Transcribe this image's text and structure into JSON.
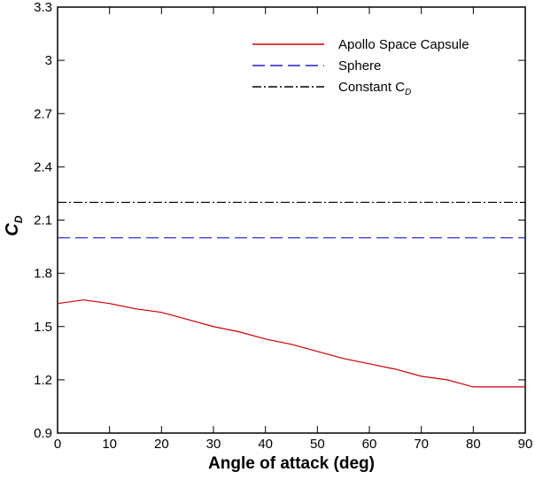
{
  "chart_data": {
    "type": "line",
    "xlabel": "Angle of attack (deg)",
    "ylabel": "C",
    "ylabel_sub": "D",
    "x": [
      0,
      5,
      10,
      15,
      20,
      25,
      30,
      35,
      40,
      45,
      50,
      55,
      60,
      65,
      70,
      75,
      80,
      85,
      90
    ],
    "series": [
      {
        "name": "Apollo Space Capsule",
        "color": "#cc0000",
        "dash": "solid",
        "values": [
          1.63,
          1.65,
          1.63,
          1.6,
          1.58,
          1.54,
          1.5,
          1.47,
          1.43,
          1.4,
          1.36,
          1.32,
          1.29,
          1.26,
          1.22,
          1.2,
          1.16,
          1.16,
          1.16
        ]
      },
      {
        "name": "Sphere",
        "color": "#2222cc",
        "dash": "dashed",
        "values": [
          2.0,
          2.0,
          2.0,
          2.0,
          2.0,
          2.0,
          2.0,
          2.0,
          2.0,
          2.0,
          2.0,
          2.0,
          2.0,
          2.0,
          2.0,
          2.0,
          2.0,
          2.0,
          2.0
        ]
      },
      {
        "name": "Constant C",
        "name_sub": "D",
        "color": "#000000",
        "dash": "dashdot",
        "values": [
          2.2,
          2.2,
          2.2,
          2.2,
          2.2,
          2.2,
          2.2,
          2.2,
          2.2,
          2.2,
          2.2,
          2.2,
          2.2,
          2.2,
          2.2,
          2.2,
          2.2,
          2.2,
          2.2
        ]
      }
    ],
    "xlim": [
      0,
      90
    ],
    "xticks": [
      0,
      10,
      20,
      30,
      40,
      50,
      60,
      70,
      80,
      90
    ],
    "ylim": [
      0.9,
      3.3
    ],
    "yticks": [
      0.9,
      1.2,
      1.5,
      1.8,
      2.1,
      2.4,
      2.7,
      3,
      3.3
    ],
    "grid": false,
    "legend": "top-right"
  }
}
